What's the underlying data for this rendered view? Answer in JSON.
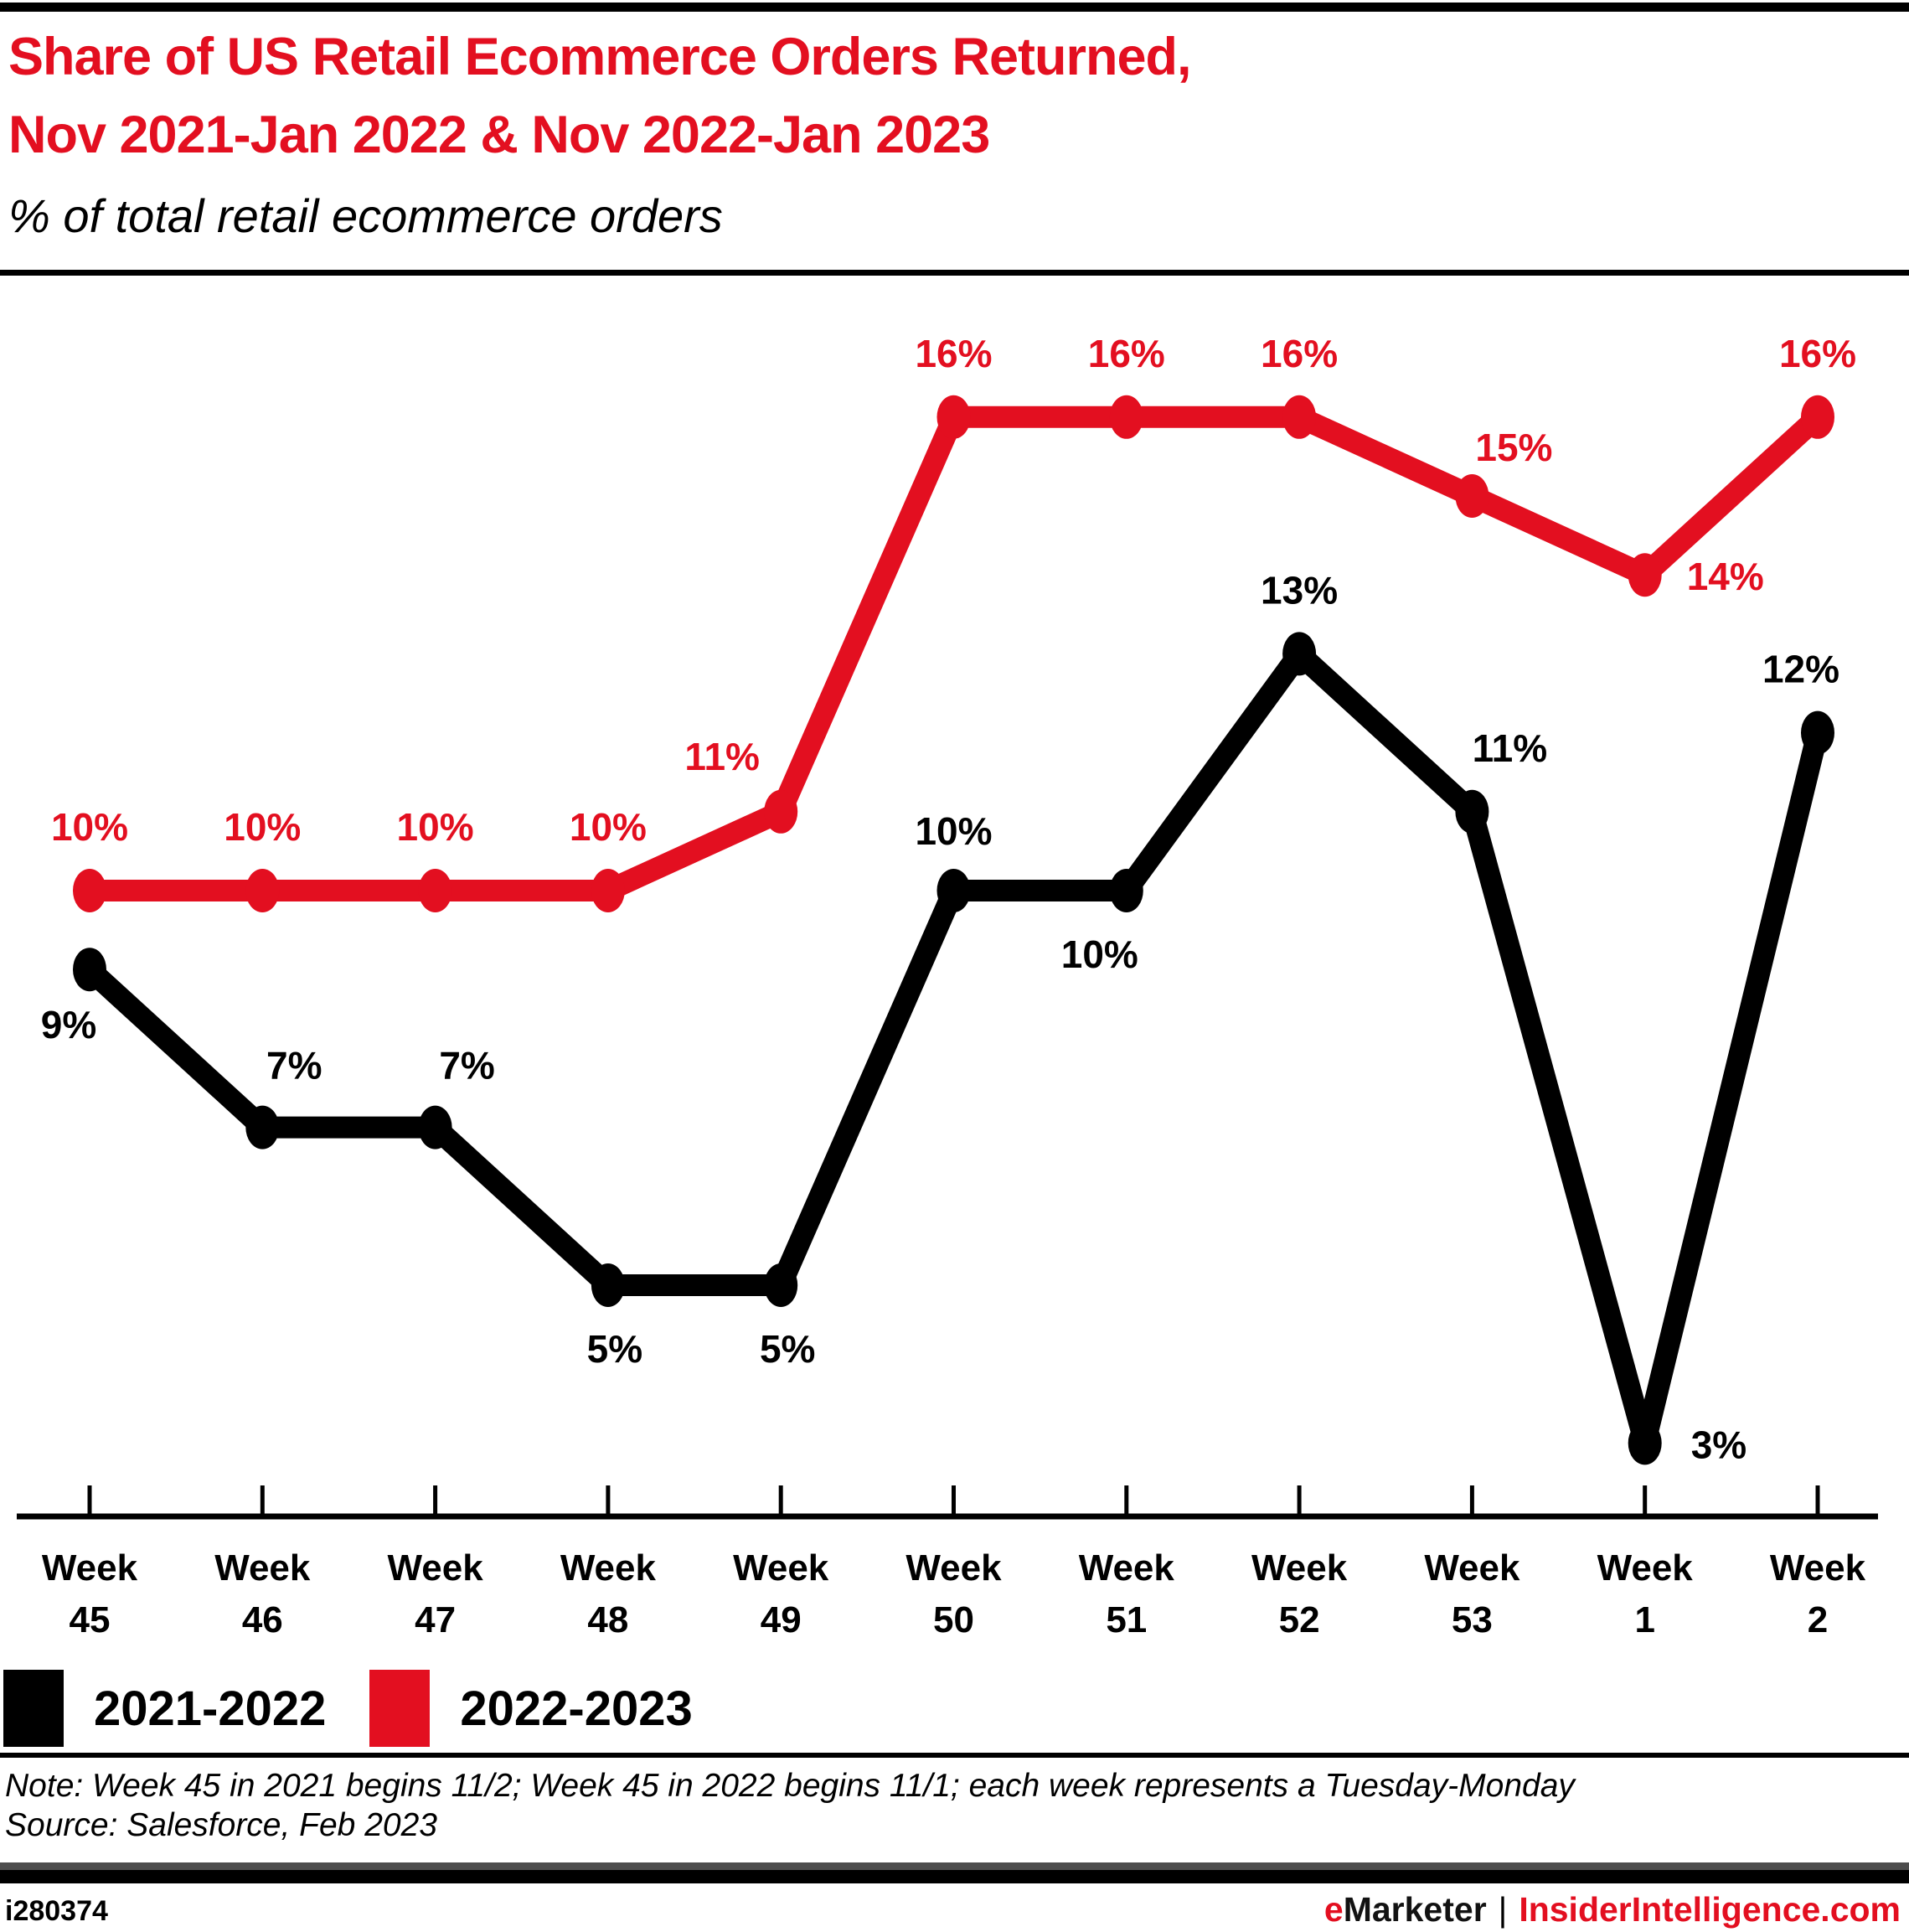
{
  "header": {
    "title_line1": "Share of US Retail Ecommerce Orders Returned,",
    "title_line2": "Nov 2021-Jan 2022 & Nov 2022-Jan 2023",
    "subtitle": "% of total retail ecommerce orders"
  },
  "chart_data": {
    "type": "line",
    "unit": "%",
    "category_prefix": "Week",
    "categories": [
      "45",
      "46",
      "47",
      "48",
      "49",
      "50",
      "51",
      "52",
      "53",
      "1",
      "2"
    ],
    "ylim": [
      2,
      18
    ],
    "grid": false,
    "legend_position": "bottom-left",
    "series": [
      {
        "name": "2021-2022",
        "color": "#000000",
        "values": [
          9,
          7,
          7,
          5,
          5,
          10,
          10,
          13,
          11,
          3,
          12
        ],
        "label_offsets": [
          [
            -25,
            82,
            "middle"
          ],
          [
            38,
            -58,
            "middle"
          ],
          [
            38,
            -58,
            "middle"
          ],
          [
            8,
            92,
            "middle"
          ],
          [
            8,
            92,
            "middle"
          ],
          [
            0,
            -55,
            "middle"
          ],
          [
            -32,
            92,
            "middle"
          ],
          [
            0,
            -60,
            "middle"
          ],
          [
            45,
            -60,
            "middle"
          ],
          [
            55,
            18,
            "start"
          ],
          [
            -20,
            -60,
            "middle"
          ]
        ]
      },
      {
        "name": "2022-2023",
        "color": "#e30f20",
        "values": [
          10,
          10,
          10,
          10,
          11,
          16,
          16,
          16,
          15,
          14,
          16
        ],
        "label_offsets": [
          [
            0,
            -60,
            "middle"
          ],
          [
            0,
            -60,
            "middle"
          ],
          [
            0,
            -60,
            "middle"
          ],
          [
            0,
            -60,
            "middle"
          ],
          [
            -70,
            -50,
            "middle"
          ],
          [
            0,
            -60,
            "middle"
          ],
          [
            0,
            -60,
            "middle"
          ],
          [
            0,
            -60,
            "middle"
          ],
          [
            50,
            -42,
            "middle"
          ],
          [
            50,
            18,
            "start"
          ],
          [
            0,
            -60,
            "middle"
          ]
        ]
      }
    ]
  },
  "footnotes": {
    "note": "Note: Week 45 in 2021 begins 11/2; Week 45 in 2022 begins 11/1; each week represents a Tuesday-Monday",
    "source": "Source: Salesforce, Feb 2023"
  },
  "footer": {
    "chart_id": "i280374",
    "brand_first_letter": "e",
    "brand_rest": "Marketer",
    "separator": "|",
    "site": "InsiderIntelligence.com"
  },
  "colors": {
    "accent_red": "#e30f20",
    "series_black": "#000000",
    "footer_bar_gray": "#4d4d4d"
  }
}
